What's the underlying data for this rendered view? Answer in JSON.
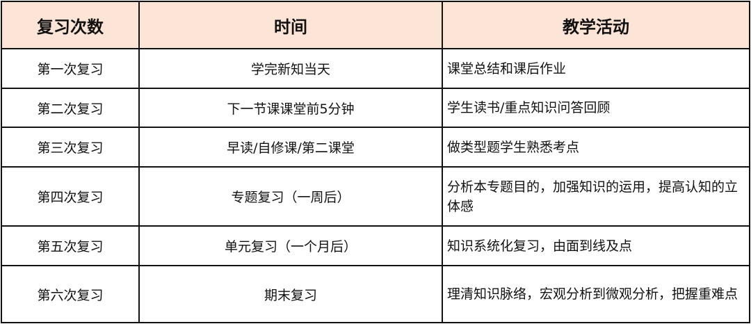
{
  "colors": {
    "header_bg": "#fce4d6",
    "border": "#111111"
  },
  "headers": [
    "复习次数",
    "时间",
    "教学活动"
  ],
  "rows": [
    {
      "round": "第一次复习",
      "time": "学完新知当天",
      "activity": "课堂总结和课后作业"
    },
    {
      "round": "第二次复习",
      "time": "下一节课课堂前5分钟",
      "activity": "学生读书/重点知识问答回顾"
    },
    {
      "round": "第三次复习",
      "time": "早读/自修课/第二课堂",
      "activity": "做类型题学生熟悉考点"
    },
    {
      "round": "第四次复习",
      "time": "专题复习（一周后）",
      "activity": "分析本专题目的，加强知识的运用，提高认知的立体感"
    },
    {
      "round": "第五次复习",
      "time": "单元复习（一个月后）",
      "activity": "知识系统化复习，由面到线及点"
    },
    {
      "round": "第六次复习",
      "time": "期末复习",
      "activity": "理清知识脉络，宏观分析到微观分析，把握重难点"
    }
  ]
}
